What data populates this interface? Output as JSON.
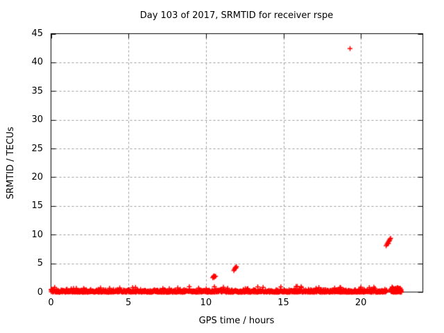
{
  "chart_data": {
    "type": "scatter",
    "title": "Day 103 of 2017, SRMTID for receiver rspe",
    "xlabel": "GPS time / hours",
    "ylabel": "SRMTID / TECUs",
    "xlim": [
      0,
      24
    ],
    "ylim": [
      0,
      45
    ],
    "xticks": [
      0,
      5,
      10,
      15,
      20
    ],
    "yticks": [
      0,
      5,
      10,
      15,
      20,
      25,
      30,
      35,
      40,
      45
    ],
    "grid": true,
    "legend": "none",
    "marker": "plus",
    "colors": {
      "points": "#ff0000",
      "grid": "#9c9c9c",
      "border": "#000000",
      "text": "#000000",
      "background": "#ffffff"
    },
    "outlier_points": [
      [
        10.44,
        2.5
      ],
      [
        10.48,
        2.7
      ],
      [
        10.52,
        2.85
      ],
      [
        10.52,
        2.55
      ],
      [
        10.57,
        2.7
      ],
      [
        10.62,
        2.75
      ],
      [
        11.8,
        3.75
      ],
      [
        11.84,
        3.95
      ],
      [
        11.88,
        4.1
      ],
      [
        11.9,
        4.3
      ],
      [
        11.94,
        4.2
      ],
      [
        11.97,
        4.45
      ],
      [
        19.3,
        42.4
      ],
      [
        21.63,
        8.05
      ],
      [
        21.68,
        8.3
      ],
      [
        21.73,
        8.55
      ],
      [
        21.78,
        8.75
      ],
      [
        21.78,
        8.45
      ],
      [
        21.83,
        9.0
      ],
      [
        21.84,
        8.9
      ],
      [
        21.88,
        9.2
      ],
      [
        21.92,
        9.35
      ]
    ],
    "baseline_band": {
      "description": "dense band of + markers hugging 0 TECUs for the whole day",
      "x_start": 0,
      "x_end": 22.62,
      "y_min": 0,
      "y_max": 0.55,
      "spike_y_max": 1.0,
      "spike_probability": 0.04,
      "gaps": [
        [
          21.68,
          21.94
        ]
      ],
      "dense_tail": {
        "x_start": 21.94,
        "x_end": 22.62,
        "y_max": 0.75
      },
      "points_per_hour": 55,
      "seed": 987654321
    }
  }
}
